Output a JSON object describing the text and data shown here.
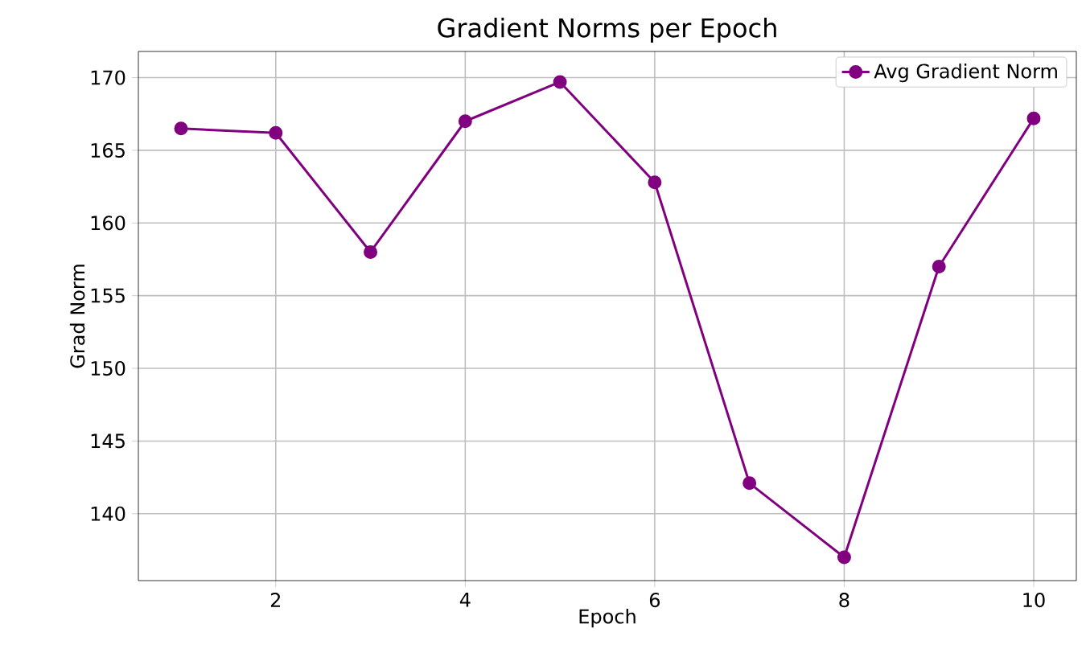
{
  "chart_data": {
    "type": "line",
    "title": "Gradient Norms per Epoch",
    "xlabel": "Epoch",
    "ylabel": "Grad Norm",
    "x": [
      1,
      2,
      3,
      4,
      5,
      6,
      7,
      8,
      9,
      10
    ],
    "series": [
      {
        "name": "Avg Gradient Norm",
        "color": "#800080",
        "values": [
          166.5,
          166.2,
          158.0,
          167.0,
          169.7,
          162.8,
          142.1,
          137.0,
          157.0,
          167.2
        ]
      }
    ],
    "xlim": [
      0.55,
      10.45
    ],
    "ylim": [
      135.4,
      171.8
    ],
    "xticks": [
      2,
      4,
      6,
      8,
      10
    ],
    "yticks": [
      140,
      145,
      150,
      155,
      160,
      165,
      170
    ],
    "grid": true,
    "legend": "top right",
    "marker": "circle",
    "line_style": "solid"
  }
}
